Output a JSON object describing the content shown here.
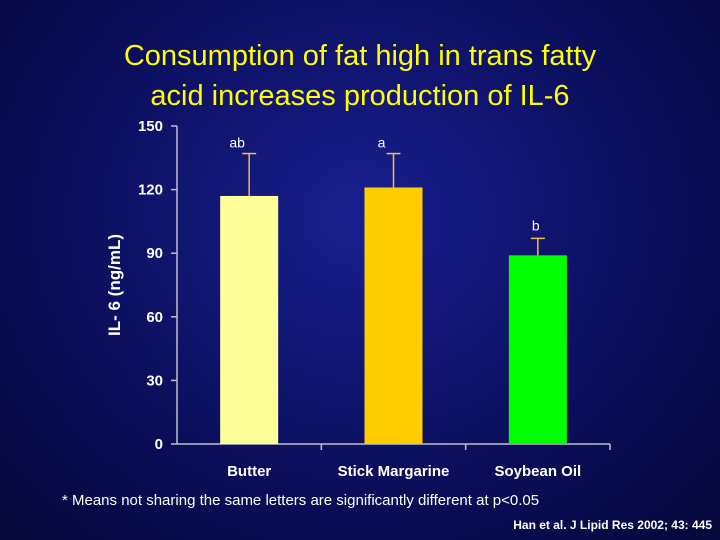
{
  "title_line1": "Consumption of fat high in trans fatty",
  "title_line2": "acid increases production of IL-6",
  "footnote": "* Means not sharing the same letters are significantly different at p<0.05",
  "citation": "Han et al. J Lipid Res 2002; 43: 445",
  "chart_data": {
    "type": "bar",
    "categories": [
      "Butter",
      "Stick Margarine",
      "Soybean Oil"
    ],
    "values": [
      117,
      121,
      89
    ],
    "error_upper": [
      137,
      137,
      97
    ],
    "significance_letters": [
      "ab",
      "a",
      "b"
    ],
    "bar_colors": [
      "#ffff99",
      "#ffcc00",
      "#00ff00"
    ],
    "ylabel": "IL- 6 (ng/mL)",
    "yticks": [
      0,
      30,
      60,
      90,
      120,
      150
    ],
    "ylim": [
      0,
      150
    ],
    "grid": false
  }
}
